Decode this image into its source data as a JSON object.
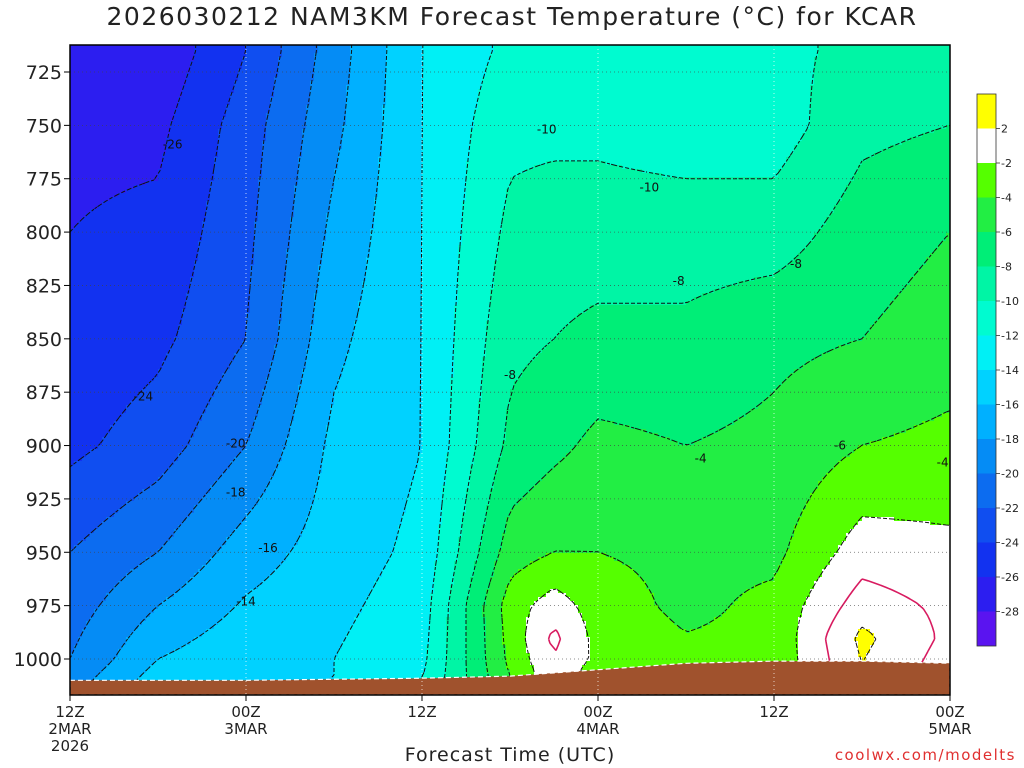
{
  "title": "2026030212 NAM3KM Forecast Temperature (°C) for KCAR",
  "xlabel": "Forecast Time (UTC)",
  "credit": "coolwx.com/modelts",
  "colors": {
    "terrain": "#a0522d",
    "below_freezing_line": "#d81b60",
    "contour_line": "#111111",
    "grid": "#bbbbbb"
  },
  "chart_data": {
    "type": "heatmap",
    "title": "2026030212 NAM3KM Forecast Temperature (°C) for KCAR",
    "xlabel": "Forecast Time (UTC)",
    "ylabel": "",
    "x_hours": [
      0,
      12,
      24,
      36,
      48,
      60
    ],
    "x_range_hours": [
      0,
      60
    ],
    "x_ticks": [
      {
        "hour": 0,
        "lines": [
          "12Z",
          "2MAR",
          "2026"
        ]
      },
      {
        "hour": 12,
        "lines": [
          "00Z",
          "3MAR"
        ]
      },
      {
        "hour": 24,
        "lines": [
          "12Z"
        ]
      },
      {
        "hour": 36,
        "lines": [
          "00Z",
          "4MAR"
        ]
      },
      {
        "hour": 48,
        "lines": [
          "12Z"
        ]
      },
      {
        "hour": 60,
        "lines": [
          "00Z",
          "5MAR"
        ]
      }
    ],
    "y_ticks": [
      725,
      750,
      775,
      800,
      825,
      850,
      875,
      900,
      925,
      950,
      975,
      1000
    ],
    "y_range_hPa": [
      710,
      1018
    ],
    "grid": true,
    "colorbar": {
      "placement": "right",
      "bins": [
        {
          "from": 2,
          "to": 4,
          "color": "#ffff00"
        },
        {
          "from": -2,
          "to": 2,
          "color": "#ffffff"
        },
        {
          "from": -4,
          "to": -2,
          "color": "#55ff00"
        },
        {
          "from": -6,
          "to": -4,
          "color": "#22ee44"
        },
        {
          "from": -8,
          "to": -6,
          "color": "#00ee77"
        },
        {
          "from": -10,
          "to": -8,
          "color": "#00f5a5"
        },
        {
          "from": -12,
          "to": -10,
          "color": "#00fbd0"
        },
        {
          "from": -14,
          "to": -12,
          "color": "#00f0f5"
        },
        {
          "from": -16,
          "to": -14,
          "color": "#00d2ff"
        },
        {
          "from": -18,
          "to": -16,
          "color": "#00b0ff"
        },
        {
          "from": -20,
          "to": -18,
          "color": "#058cf5"
        },
        {
          "from": -22,
          "to": -20,
          "color": "#0c6cf0"
        },
        {
          "from": -24,
          "to": -22,
          "color": "#104ef0"
        },
        {
          "from": -26,
          "to": -24,
          "color": "#1232f0"
        },
        {
          "from": -28,
          "to": -26,
          "color": "#2c1ef0"
        },
        {
          "from": -30,
          "to": -28,
          "color": "#5a14f0"
        }
      ],
      "labels": [
        "2",
        "-2",
        "-4",
        "-6",
        "-8",
        "-10",
        "-12",
        "-14",
        "-16",
        "-18",
        "-20",
        "-22",
        "-24",
        "-26",
        "-28"
      ]
    },
    "temperature_profiles": [
      {
        "hour": 0,
        "p": [
          715,
          750,
          800,
          850,
          900,
          950,
          1000,
          1010
        ],
        "t": [
          -27,
          -26.5,
          -26,
          -25.5,
          -24.5,
          -22,
          -20,
          -19
        ]
      },
      {
        "hour": 6,
        "p": [
          715,
          750,
          800,
          850,
          900,
          950,
          1000,
          1010
        ],
        "t": [
          -27.5,
          -26.5,
          -25.5,
          -24.5,
          -23,
          -20,
          -16,
          -15
        ]
      },
      {
        "hour": 12,
        "p": [
          715,
          750,
          800,
          850,
          900,
          950,
          1000,
          1010
        ],
        "t": [
          -24,
          -23,
          -22.5,
          -22,
          -20,
          -17,
          -14.5,
          -14
        ]
      },
      {
        "hour": 18,
        "p": [
          715,
          750,
          800,
          850,
          900,
          950,
          1000,
          1010
        ],
        "t": [
          -19,
          -18.5,
          -17.5,
          -16.5,
          -15.5,
          -15,
          -14,
          -14
        ]
      },
      {
        "hour": 24,
        "p": [
          715,
          750,
          800,
          850,
          900,
          950,
          1000,
          1010
        ],
        "t": [
          -14,
          -14,
          -14,
          -14,
          -14,
          -13.5,
          -12.5,
          -12
        ]
      },
      {
        "hour": 30,
        "p": [
          715,
          750,
          800,
          850,
          900,
          950,
          975,
          1000,
          1008
        ],
        "t": [
          -11.5,
          -10.5,
          -9.5,
          -8.5,
          -7.5,
          -5,
          -3,
          -3.5,
          -4
        ]
      },
      {
        "hour": 33,
        "p": [
          715,
          750,
          800,
          850,
          900,
          950,
          975,
          990,
          1006
        ],
        "t": [
          -11,
          -10.5,
          -9,
          -8,
          -6.5,
          -4,
          -1,
          0.5,
          -0.5
        ]
      },
      {
        "hour": 36,
        "p": [
          715,
          750,
          800,
          850,
          900,
          950,
          975,
          1000,
          1005
        ],
        "t": [
          -10.5,
          -10.5,
          -9,
          -7.5,
          -5.5,
          -4,
          -3,
          -2.5,
          -3
        ]
      },
      {
        "hour": 42,
        "p": [
          715,
          750,
          800,
          850,
          900,
          950,
          975,
          1000,
          1004
        ],
        "t": [
          -10.5,
          -11,
          -9,
          -7.5,
          -6,
          -4.5,
          -4.5,
          -3.5,
          -3.5
        ]
      },
      {
        "hour": 48,
        "p": [
          715,
          750,
          800,
          850,
          900,
          950,
          975,
          1000,
          1002
        ],
        "t": [
          -10.5,
          -11,
          -9,
          -6.5,
          -5.5,
          -4.5,
          -3.5,
          -3.5,
          -3.5
        ]
      },
      {
        "hour": 54,
        "p": [
          715,
          750,
          800,
          850,
          900,
          950,
          975,
          990,
          1002
        ],
        "t": [
          -9.5,
          -8.5,
          -7,
          -6,
          -4,
          -1,
          1,
          2.5,
          2
        ]
      },
      {
        "hour": 60,
        "p": [
          715,
          750,
          800,
          850,
          900,
          950,
          975,
          990,
          1003
        ],
        "t": [
          -9,
          -8,
          -6,
          -5,
          -3.5,
          -1.5,
          -0.5,
          -0.5,
          -1
        ]
      }
    ],
    "contour_labels": [
      {
        "text": "-26",
        "hour": 7,
        "p": 759
      },
      {
        "text": "-24",
        "hour": 5,
        "p": 877
      },
      {
        "text": "-20",
        "hour": 11.3,
        "p": 899
      },
      {
        "text": "-18",
        "hour": 11.3,
        "p": 922
      },
      {
        "text": "-16",
        "hour": 13.5,
        "p": 948
      },
      {
        "text": "-14",
        "hour": 12,
        "p": 973
      },
      {
        "text": "-10",
        "hour": 32.5,
        "p": 752
      },
      {
        "text": "-10",
        "hour": 39.5,
        "p": 779
      },
      {
        "text": "-8",
        "hour": 41.5,
        "p": 823
      },
      {
        "text": "-8",
        "hour": 49.5,
        "p": 815
      },
      {
        "text": "-8",
        "hour": 30,
        "p": 867
      },
      {
        "text": "-6",
        "hour": 52.5,
        "p": 900
      },
      {
        "text": "-4",
        "hour": 43,
        "p": 906
      },
      {
        "text": "-4",
        "hour": 59.5,
        "p": 908
      }
    ],
    "surface_pressure": [
      {
        "hour": 0,
        "p": 1010
      },
      {
        "hour": 12,
        "p": 1010
      },
      {
        "hour": 24,
        "p": 1009
      },
      {
        "hour": 30,
        "p": 1008
      },
      {
        "hour": 36,
        "p": 1005
      },
      {
        "hour": 42,
        "p": 1002
      },
      {
        "hour": 48,
        "p": 1001
      },
      {
        "hour": 54,
        "p": 1001
      },
      {
        "hour": 60,
        "p": 1002
      }
    ]
  }
}
